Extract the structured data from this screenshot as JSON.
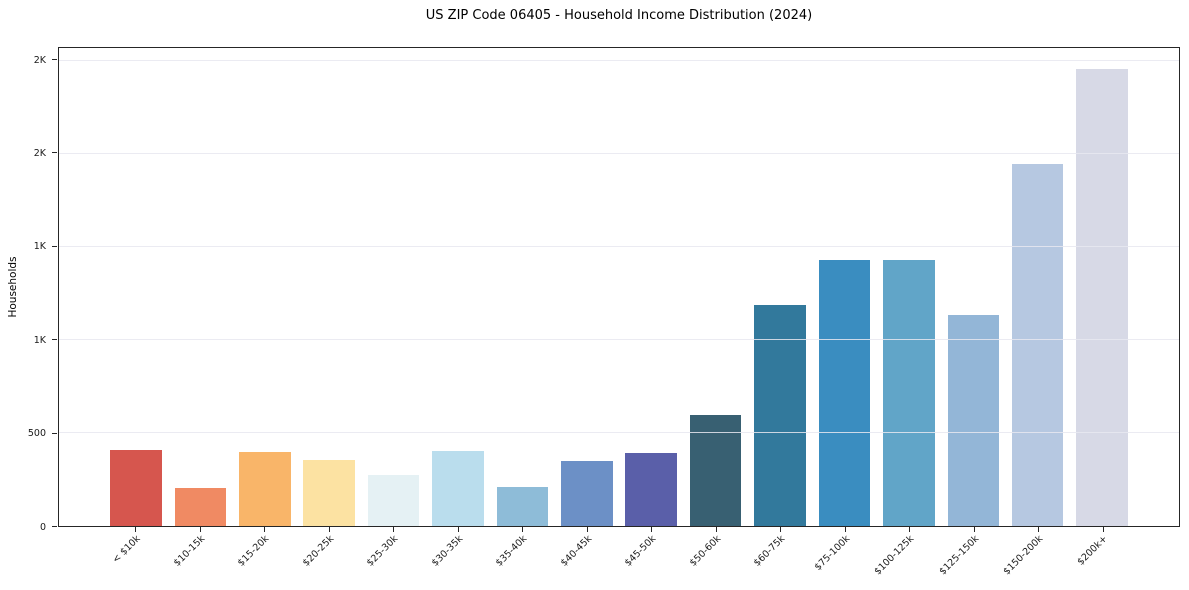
{
  "chart_data": {
    "type": "bar",
    "title": "US ZIP Code 06405 - Household Income Distribution (2024)",
    "xlabel": "",
    "ylabel": "Households",
    "ylim": [
      0,
      2570
    ],
    "grid": true,
    "legend_position": "none",
    "x_tick_rotation_deg": 45,
    "categories": [
      "< $10k",
      "$10-15k",
      "$15-20k",
      "$20-25k",
      "$25-30k",
      "$30-35k",
      "$35-40k",
      "$40-45k",
      "$45-50k",
      "$50-60k",
      "$60-75k",
      "$75-100k",
      "$100-125k",
      "$125-150k",
      "$150-200k",
      "$200k+"
    ],
    "values": [
      410,
      205,
      400,
      355,
      275,
      405,
      210,
      350,
      395,
      595,
      1190,
      1430,
      1430,
      1135,
      1945,
      2455
    ],
    "bar_colors": [
      "#d6564e",
      "#f08a63",
      "#f9b569",
      "#fce2a2",
      "#e5f1f4",
      "#badded",
      "#8ebcd8",
      "#6c90c6",
      "#5a5fa9",
      "#38607",
      "#32799c",
      "#3a8dc0",
      "#61a5c8",
      "#93b6d7",
      "#b6c8e1",
      "#d7d9e6"
    ],
    "yticks": [
      {
        "value": 0,
        "label": "0"
      },
      {
        "value": 500,
        "label": "500"
      },
      {
        "value": 1000,
        "label": "1K"
      },
      {
        "value": 1500,
        "label": "1K"
      },
      {
        "value": 2000,
        "label": "2K"
      },
      {
        "value": 2500,
        "label": "2K"
      }
    ]
  },
  "style": {
    "background": "#ffffff",
    "grid_color": "#e7e7f0",
    "spine_color": "#262626",
    "text_color": "#000000"
  }
}
